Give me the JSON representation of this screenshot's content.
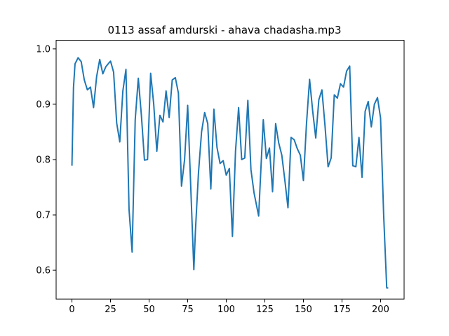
{
  "chart_data": {
    "type": "line",
    "title": "0113 assaf amdurski - ahava chadasha.mp3",
    "xlabel": "",
    "ylabel": "",
    "xlim": [
      -10.25,
      215.25
    ],
    "ylim": [
      0.548,
      1.0155
    ],
    "grid": false,
    "legend": "none",
    "x_ticks": [
      0,
      25,
      50,
      75,
      100,
      125,
      150,
      175,
      200
    ],
    "x_tick_labels": [
      "0",
      "25",
      "50",
      "75",
      "100",
      "125",
      "150",
      "175",
      "200"
    ],
    "y_ticks": [
      0.6,
      0.7,
      0.8,
      0.9,
      1.0
    ],
    "y_tick_labels": [
      "0.6",
      "0.7",
      "0.8",
      "0.9",
      "1.0"
    ],
    "color": "#1f77b4",
    "series": [
      {
        "x": [
          0,
          1,
          2,
          4,
          6,
          8,
          10,
          12,
          14,
          16,
          18,
          20,
          22,
          25,
          27,
          29,
          31,
          33,
          35,
          37,
          39,
          41,
          43,
          45,
          47,
          49,
          51,
          53,
          55,
          57,
          59,
          61,
          63,
          65,
          67,
          69,
          71,
          73,
          75,
          77,
          79,
          80,
          82,
          84,
          86,
          88,
          90,
          92,
          94,
          96,
          98,
          100,
          102,
          104,
          106,
          108,
          110,
          112,
          114,
          116,
          118,
          121,
          122,
          124,
          126,
          128,
          130,
          132,
          134,
          136,
          138,
          140,
          142,
          144,
          146,
          148,
          150,
          152,
          154,
          156,
          158,
          160,
          162,
          164,
          166,
          168,
          170,
          172,
          174,
          176,
          178,
          180,
          182,
          184,
          186,
          188,
          190,
          192,
          194,
          196,
          198,
          200,
          202,
          204,
          205
        ],
        "y": [
          0.789,
          0.93,
          0.973,
          0.984,
          0.977,
          0.944,
          0.926,
          0.931,
          0.894,
          0.95,
          0.981,
          0.955,
          0.968,
          0.978,
          0.958,
          0.866,
          0.832,
          0.924,
          0.963,
          0.71,
          0.633,
          0.872,
          0.947,
          0.88,
          0.799,
          0.8,
          0.956,
          0.9,
          0.815,
          0.88,
          0.868,
          0.924,
          0.876,
          0.944,
          0.948,
          0.92,
          0.752,
          0.8,
          0.898,
          0.75,
          0.601,
          0.67,
          0.776,
          0.85,
          0.885,
          0.865,
          0.747,
          0.891,
          0.822,
          0.793,
          0.798,
          0.772,
          0.784,
          0.661,
          0.815,
          0.894,
          0.8,
          0.803,
          0.907,
          0.782,
          0.74,
          0.698,
          0.757,
          0.872,
          0.802,
          0.821,
          0.742,
          0.865,
          0.83,
          0.808,
          0.762,
          0.713,
          0.84,
          0.836,
          0.82,
          0.808,
          0.762,
          0.865,
          0.945,
          0.888,
          0.839,
          0.908,
          0.926,
          0.861,
          0.787,
          0.803,
          0.917,
          0.911,
          0.937,
          0.931,
          0.96,
          0.969,
          0.789,
          0.787,
          0.84,
          0.768,
          0.887,
          0.905,
          0.859,
          0.9,
          0.912,
          0.875,
          0.7,
          0.568,
          0.568
        ]
      }
    ]
  }
}
